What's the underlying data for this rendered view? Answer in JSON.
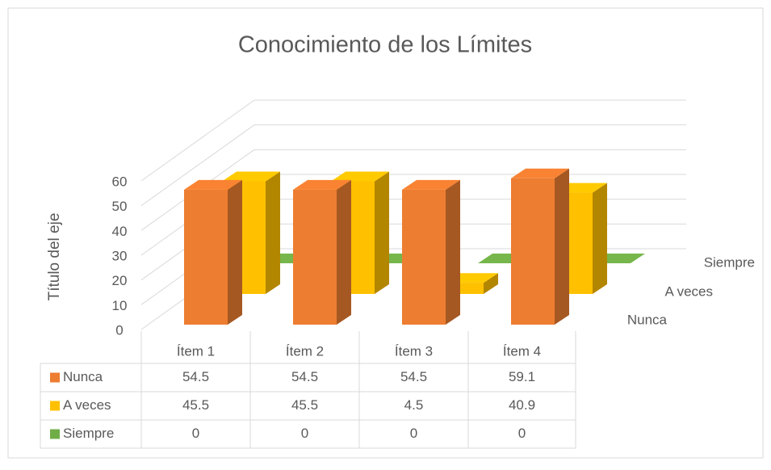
{
  "chart_data": {
    "type": "bar3d",
    "title": "Conocimiento de los Límites",
    "ylabel": "Título del eje",
    "categories": [
      "Ítem 1",
      "Ítem 2",
      "Ítem 3",
      "Ítem 4"
    ],
    "series": [
      {
        "name": "Nunca",
        "color": "#ED7D31",
        "values": [
          54.5,
          54.5,
          54.5,
          59.1
        ]
      },
      {
        "name": "A veces",
        "color": "#FFC000",
        "values": [
          45.5,
          45.5,
          4.5,
          40.9
        ]
      },
      {
        "name": "Siempre",
        "color": "#70AD47",
        "values": [
          0,
          0,
          0,
          0
        ]
      }
    ],
    "ylim": [
      0,
      60
    ],
    "yticks": [
      0,
      10,
      20,
      30,
      40,
      50,
      60
    ],
    "grid": true,
    "data_table": true
  }
}
